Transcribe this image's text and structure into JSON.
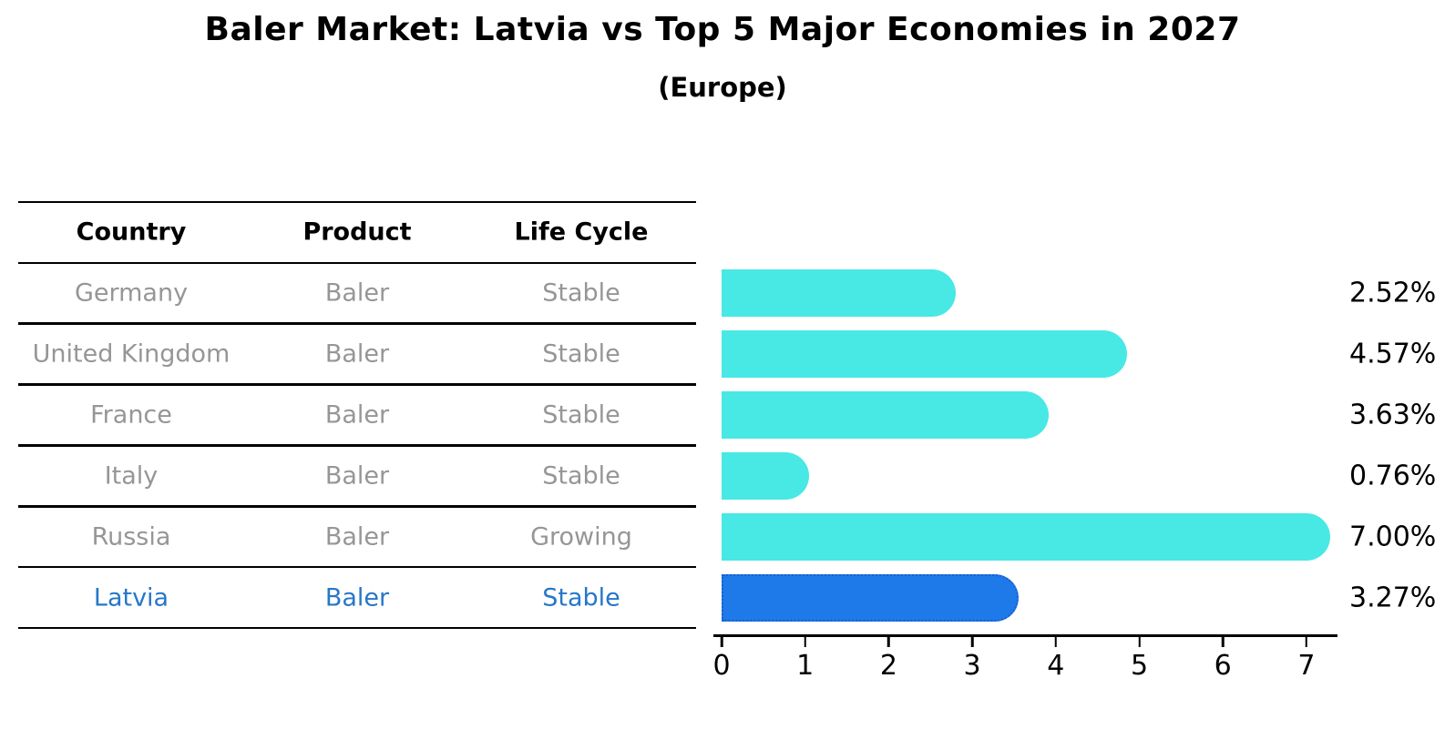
{
  "title": "Baler Market: Latvia vs Top 5 Major Economies in 2027",
  "subtitle": "(Europe)",
  "table": {
    "headers": [
      "Country",
      "Product",
      "Life Cycle"
    ],
    "rows": [
      {
        "country": "Germany",
        "product": "Baler",
        "life_cycle": "Stable",
        "highlight": false
      },
      {
        "country": "United Kingdom",
        "product": "Baler",
        "life_cycle": "Stable",
        "highlight": false
      },
      {
        "country": "France",
        "product": "Baler",
        "life_cycle": "Stable",
        "highlight": false
      },
      {
        "country": "Italy",
        "product": "Baler",
        "life_cycle": "Stable",
        "highlight": false
      },
      {
        "country": "Russia",
        "product": "Baler",
        "life_cycle": "Growing",
        "highlight": false
      },
      {
        "country": "Latvia",
        "product": "Baler",
        "life_cycle": "Stable",
        "highlight": true
      }
    ]
  },
  "chart_data": {
    "type": "bar",
    "orientation": "horizontal",
    "title": "Baler Market: Latvia vs Top 5 Major Economies in 2027",
    "subtitle": "(Europe)",
    "categories": [
      "Germany",
      "United Kingdom",
      "France",
      "Italy",
      "Russia",
      "Latvia"
    ],
    "values": [
      2.52,
      4.57,
      3.63,
      0.76,
      7.0,
      3.27
    ],
    "value_labels": [
      "2.52%",
      "4.57%",
      "3.63%",
      "0.76%",
      "7.00%",
      "3.27%"
    ],
    "xticks": [
      "0",
      "1",
      "2",
      "3",
      "4",
      "5",
      "6",
      "7"
    ],
    "xlim": [
      0,
      7.37
    ],
    "grid": false,
    "legend": null,
    "highlight_category": "Latvia",
    "colors": {
      "bar": "#48e8e5",
      "highlight_bar": "#1e7ae8",
      "highlight_bar_border": "#1a5fd0",
      "row_text": "#969696",
      "highlight_text": "#2677c8",
      "axis": "#000000"
    }
  }
}
